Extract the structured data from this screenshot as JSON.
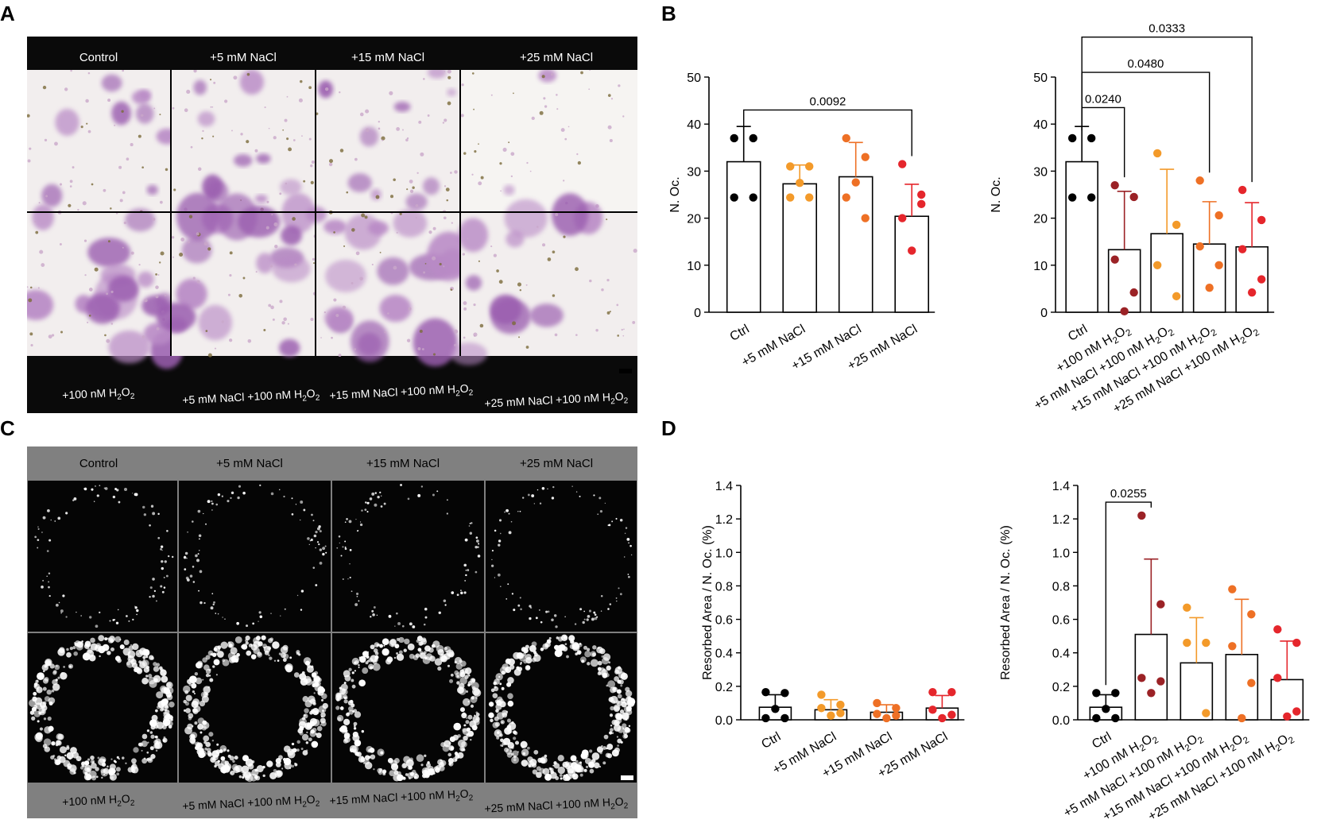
{
  "panel_letters": [
    "A",
    "B",
    "C",
    "D"
  ],
  "panel_a": {
    "top_labels": [
      "Control",
      "+5 mM NaCl",
      "+15 mM NaCl",
      "+25 mM NaCl"
    ],
    "bottom_labels": [
      {
        "main": "+100 nM H",
        "sub": "2",
        "tail": "O",
        "sub2": "2"
      },
      {
        "main": "+5 mM NaCl +100 nM H",
        "sub": "2",
        "tail": "O",
        "sub2": "2"
      },
      {
        "main": "+15 mM NaCl +100 nM H",
        "sub": "2",
        "tail": "O",
        "sub2": "2"
      },
      {
        "main": "+25 mM NaCl +100 nM H",
        "sub": "2",
        "tail": "O",
        "sub2": "2"
      }
    ],
    "image_description_colors": {
      "bg": "#f4f1ef",
      "stain": "#8a4a9c",
      "header": "#0a0a0a"
    }
  },
  "panel_c": {
    "top_labels": [
      "Control",
      "+5 mM NaCl",
      "+15 mM NaCl",
      "+25 mM NaCl"
    ],
    "bottom_labels": [
      {
        "main": "+100 nM H",
        "sub": "2",
        "tail": "O",
        "sub2": "2"
      },
      {
        "main": "+5 mM NaCl +100 nM H",
        "sub": "2",
        "tail": "O",
        "sub2": "2"
      },
      {
        "main": "+15 mM NaCl +100 nM H",
        "sub": "2",
        "tail": "O",
        "sub2": "2"
      },
      {
        "main": "+25 mM NaCl +100 nM H",
        "sub": "2",
        "tail": "O",
        "sub2": "2"
      }
    ],
    "header_color": "#808080"
  },
  "colors": {
    "ctrl": "#000000",
    "light_orange": "#f39a2a",
    "orange": "#ee7025",
    "red": "#e5262c",
    "dark_red": "#9b2226"
  },
  "chart_data": [
    {
      "id": "b-left",
      "type": "bar",
      "ylabel": "N. Oc.",
      "ylim": [
        0,
        50
      ],
      "yticks": [
        0,
        10,
        20,
        30,
        40,
        50
      ],
      "categories": [
        "Ctrl",
        "+5 mM NaCl",
        "+15 mM NaCl",
        "+25 mM NaCl"
      ],
      "bars": [
        32,
        27.3,
        28.8,
        20.4
      ],
      "sd": [
        7.5,
        4,
        7.3,
        6.8
      ],
      "point_colors": [
        "ctrl",
        "light_orange",
        "orange",
        "red"
      ],
      "points": [
        [
          37,
          37,
          24.4,
          24.4
        ],
        [
          31,
          31,
          24.4,
          24.4,
          27.5
        ],
        [
          37,
          33,
          24.4,
          20,
          27.6
        ],
        [
          31.5,
          25,
          20,
          23,
          13.1
        ]
      ],
      "brackets": [
        {
          "from": 0,
          "to": 3,
          "y": 43,
          "label": "0.0092"
        }
      ]
    },
    {
      "id": "b-right",
      "type": "bar",
      "ylabel": "N. Oc.",
      "ylim": [
        0,
        50
      ],
      "yticks": [
        0,
        10,
        20,
        30,
        40,
        50
      ],
      "categories": [
        {
          "main": "Ctrl"
        },
        {
          "main": "+100 nM H",
          "sub": "2",
          "tail": "O",
          "sub2": "2"
        },
        {
          "main": "+5 mM NaCl +100 nM H",
          "sub": "2",
          "tail": "O",
          "sub2": "2"
        },
        {
          "main": "+15 mM NaCl +100 nM H",
          "sub": "2",
          "tail": "O",
          "sub2": "2"
        },
        {
          "main": "+25 mM NaCl +100 nM H",
          "sub": "2",
          "tail": "O",
          "sub2": "2"
        }
      ],
      "bars": [
        32,
        13.3,
        16.7,
        14.5,
        13.9
      ],
      "sd": [
        7.5,
        12.4,
        13.7,
        9,
        9.4
      ],
      "point_colors": [
        "ctrl",
        "dark_red",
        "light_orange",
        "orange",
        "red"
      ],
      "points": [
        [
          37,
          37,
          24.4,
          24.4
        ],
        [
          27,
          24.5,
          11.2,
          4.2,
          0.2
        ],
        [
          33.8,
          18.6,
          10,
          3.4
        ],
        [
          28,
          20.6,
          14,
          10,
          5.2
        ],
        [
          26,
          19.6,
          13.4,
          7,
          4.2
        ]
      ],
      "brackets": [
        {
          "from": 0,
          "to": 1,
          "y": 43.5,
          "label": "0.0240"
        },
        {
          "from": 0,
          "to": 3,
          "y": 51,
          "label": "0.0480"
        },
        {
          "from": 0,
          "to": 4,
          "y": 58.5,
          "label": "0.0333"
        }
      ]
    },
    {
      "id": "d-left",
      "type": "bar",
      "ylabel": "Resorbed Area / N. Oc. (%)",
      "ylim": [
        0,
        1.4
      ],
      "yticks": [
        "0.0",
        "0.2",
        "0.4",
        "0.6",
        "0.8",
        "1.0",
        "1.2",
        "1.4"
      ],
      "categories": [
        "Ctrl",
        "+5 mM NaCl",
        "+15 mM NaCl",
        "+25 mM NaCl"
      ],
      "bars": [
        0.075,
        0.06,
        0.045,
        0.07
      ],
      "sd": [
        0.075,
        0.06,
        0.045,
        0.075
      ],
      "point_colors": [
        "ctrl",
        "light_orange",
        "orange",
        "red"
      ],
      "points": [
        [
          0.165,
          0.16,
          0.01,
          0.01,
          0.065
        ],
        [
          0.15,
          0.09,
          0.07,
          0.04,
          0.025
        ],
        [
          0.1,
          0.07,
          0.035,
          0.025,
          0.01
        ],
        [
          0.165,
          0.165,
          0.06,
          0.03,
          0.01
        ]
      ],
      "brackets": []
    },
    {
      "id": "d-right",
      "type": "bar",
      "ylabel": "Resorbed Area / N. Oc. (%)",
      "ylim": [
        0,
        1.4
      ],
      "yticks": [
        "0.0",
        "0.2",
        "0.4",
        "0.6",
        "0.8",
        "1.0",
        "1.2",
        "1.4"
      ],
      "categories": [
        {
          "main": "Ctrl"
        },
        {
          "main": "+100 nM H",
          "sub": "2",
          "tail": "O",
          "sub2": "2"
        },
        {
          "main": "+5 mM NaCl +100 nM H",
          "sub": "2",
          "tail": "O",
          "sub2": "2"
        },
        {
          "main": "+15 mM NaCl +100 nM H",
          "sub": "2",
          "tail": "O",
          "sub2": "2"
        },
        {
          "main": "+25 mM NaCl +100 nM H",
          "sub": "2",
          "tail": "O",
          "sub2": "2"
        }
      ],
      "bars": [
        0.075,
        0.51,
        0.34,
        0.39,
        0.24
      ],
      "sd": [
        0.075,
        0.45,
        0.27,
        0.33,
        0.23
      ],
      "point_colors": [
        "ctrl",
        "dark_red",
        "light_orange",
        "orange",
        "red"
      ],
      "points": [
        [
          0.16,
          0.16,
          0.01,
          0.01,
          0.065
        ],
        [
          1.22,
          0.69,
          0.25,
          0.23,
          0.16
        ],
        [
          0.67,
          0.46,
          0.46,
          0.04
        ],
        [
          0.78,
          0.63,
          0.44,
          0.22,
          0.01
        ],
        [
          0.54,
          0.46,
          0.25,
          0.05,
          0.02
        ]
      ],
      "brackets": [
        {
          "from": 0,
          "to": 1,
          "y": 1.3,
          "label": "0.0255"
        }
      ]
    }
  ]
}
